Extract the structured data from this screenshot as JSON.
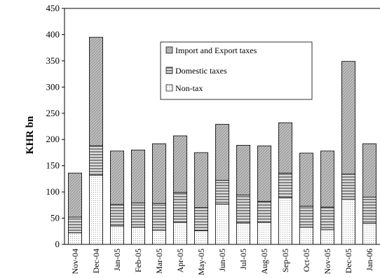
{
  "chart_data": {
    "type": "bar",
    "stacked": true,
    "categories": [
      "Nov-04",
      "Dec-04",
      "Jan-05",
      "Feb-05",
      "Mar-05",
      "Apr-05",
      "May-05",
      "Jun-05",
      "Jul-05",
      "Aug-05",
      "Sep-05",
      "Oct-05",
      "Nov-05",
      "Dec-05",
      "Jan-06"
    ],
    "series": [
      {
        "name": "Non-tax",
        "values": [
          22,
          132,
          35,
          33,
          27,
          42,
          26,
          77,
          41,
          42,
          89,
          33,
          28,
          86,
          40
        ]
      },
      {
        "name": "Domestic taxes",
        "values": [
          30,
          56,
          41,
          46,
          51,
          57,
          44,
          45,
          53,
          40,
          47,
          40,
          43,
          48,
          50
        ]
      },
      {
        "name": "Import and Export taxes",
        "values": [
          84,
          207,
          102,
          101,
          114,
          108,
          105,
          107,
          95,
          106,
          96,
          101,
          107,
          215,
          102
        ]
      }
    ],
    "title": "",
    "xlabel": "",
    "ylabel": "KHR bn",
    "ylim": [
      0,
      450
    ],
    "yticks": [
      "0",
      "50",
      "100",
      "150",
      "200",
      "250",
      "300",
      "350",
      "400",
      "450"
    ],
    "grid": false,
    "legend": {
      "placement": "top-center",
      "entries": [
        "Import and Export taxes",
        "Domestic taxes",
        "Non-tax"
      ]
    }
  }
}
